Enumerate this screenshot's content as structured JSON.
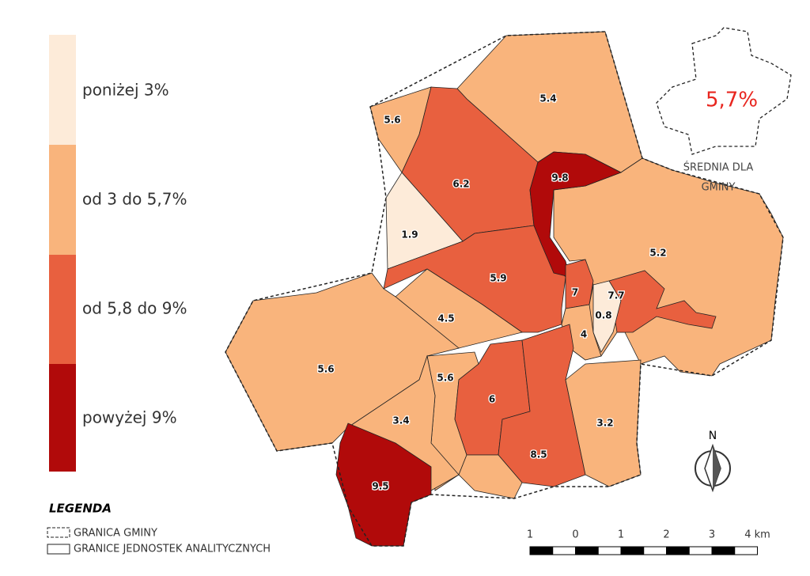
{
  "legend_classes": [
    {
      "label": "poniżej 3%",
      "color": "#fdebd9"
    },
    {
      "label": "od 3 do 5,7%",
      "color": "#f9b47c"
    },
    {
      "label": "od 5,8 do 9%",
      "color": "#e8603f"
    },
    {
      "label": "powyżej 9%",
      "color": "#b10a0a"
    }
  ],
  "regions": [
    {
      "label": "5.4",
      "color": "#f9b47c"
    },
    {
      "label": "5.6",
      "color": "#f9b47c"
    },
    {
      "label": "6.2",
      "color": "#e8603f"
    },
    {
      "label": "9.8",
      "color": "#b10a0a"
    },
    {
      "label": "1.9",
      "color": "#fdebd9"
    },
    {
      "label": "5.2",
      "color": "#f9b47c"
    },
    {
      "label": "5.9",
      "color": "#e8603f"
    },
    {
      "label": "7",
      "color": "#e8603f"
    },
    {
      "label": "7.7",
      "color": "#e8603f"
    },
    {
      "label": "0.8",
      "color": "#fdebd9"
    },
    {
      "label": "4",
      "color": "#f9b47c"
    },
    {
      "label": "4.5",
      "color": "#f9b47c"
    },
    {
      "label": "5.6",
      "color": "#f9b47c"
    },
    {
      "label": "5.6",
      "color": "#f9b47c"
    },
    {
      "label": "6",
      "color": "#e8603f"
    },
    {
      "label": "3.4",
      "color": "#f9b47c"
    },
    {
      "label": "8.5",
      "color": "#e8603f"
    },
    {
      "label": "3.2",
      "color": "#f9b47c"
    },
    {
      "label": "9.5",
      "color": "#b10a0a"
    }
  ],
  "inset": {
    "value": "5,7%",
    "caption": [
      "ŚREDNIA DLA",
      "GMINY"
    ]
  },
  "legend": {
    "title": "LEGENDA",
    "items": [
      "GRANICA GMINY",
      "GRANICE JEDNOSTEK ANALITYCZNYCH"
    ]
  },
  "north": "N",
  "scale_labels": [
    "1",
    "0",
    "1",
    "2",
    "3",
    "4 km"
  ]
}
